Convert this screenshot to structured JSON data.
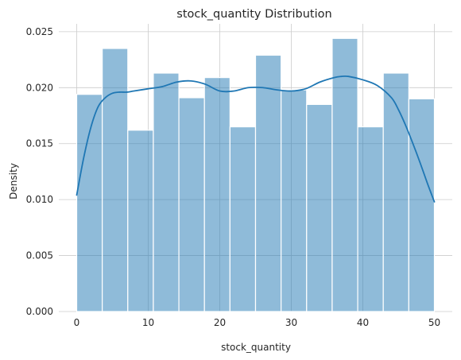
{
  "chart_data": {
    "type": "bar",
    "subtype": "histogram-with-kde",
    "title": "stock_quantity Distribution",
    "xlabel": "stock_quantity",
    "ylabel": "Density",
    "xlim": [
      -2.5,
      52.5
    ],
    "ylim": [
      0,
      0.0257
    ],
    "xticks": [
      0,
      10,
      20,
      30,
      40,
      50
    ],
    "xtick_labels": [
      "0",
      "10",
      "20",
      "30",
      "40",
      "50"
    ],
    "yticks": [
      0,
      0.005,
      0.01,
      0.015,
      0.02,
      0.025
    ],
    "ytick_labels": [
      "0.000",
      "0.005",
      "0.010",
      "0.015",
      "0.020",
      "0.025"
    ],
    "grid": true,
    "legend": "none",
    "bar_color": "#1f77b4",
    "line_color": "#1f77b4",
    "bins": [
      {
        "x0": 0.0,
        "x1": 3.571,
        "value": 0.0194
      },
      {
        "x0": 3.571,
        "x1": 7.143,
        "value": 0.0235
      },
      {
        "x0": 7.143,
        "x1": 10.714,
        "value": 0.0162
      },
      {
        "x0": 10.714,
        "x1": 14.286,
        "value": 0.0213
      },
      {
        "x0": 14.286,
        "x1": 17.857,
        "value": 0.0191
      },
      {
        "x0": 17.857,
        "x1": 21.429,
        "value": 0.0209
      },
      {
        "x0": 21.429,
        "x1": 25.0,
        "value": 0.0165
      },
      {
        "x0": 25.0,
        "x1": 28.571,
        "value": 0.0229
      },
      {
        "x0": 28.571,
        "x1": 32.143,
        "value": 0.0198
      },
      {
        "x0": 32.143,
        "x1": 35.714,
        "value": 0.0185
      },
      {
        "x0": 35.714,
        "x1": 39.286,
        "value": 0.0244
      },
      {
        "x0": 39.286,
        "x1": 42.857,
        "value": 0.0165
      },
      {
        "x0": 42.857,
        "x1": 46.429,
        "value": 0.0213
      },
      {
        "x0": 46.429,
        "x1": 50.0,
        "value": 0.019
      }
    ],
    "kde": {
      "x": [
        0,
        1,
        2,
        3,
        4,
        5,
        6,
        7,
        8,
        10,
        12,
        14,
        16,
        18,
        20,
        22,
        24,
        26,
        28,
        30,
        32,
        34,
        36,
        37,
        38,
        40,
        42,
        44,
        45,
        46,
        47,
        48,
        49,
        50
      ],
      "y": [
        0.0104,
        0.0138,
        0.0165,
        0.0183,
        0.0191,
        0.0195,
        0.0196,
        0.0196,
        0.0197,
        0.0199,
        0.0201,
        0.0205,
        0.0206,
        0.0203,
        0.0197,
        0.0197,
        0.02,
        0.02,
        0.0198,
        0.0197,
        0.0199,
        0.0205,
        0.0209,
        0.021,
        0.021,
        0.0207,
        0.0202,
        0.0191,
        0.018,
        0.0166,
        0.015,
        0.0133,
        0.0115,
        0.0098
      ]
    }
  }
}
